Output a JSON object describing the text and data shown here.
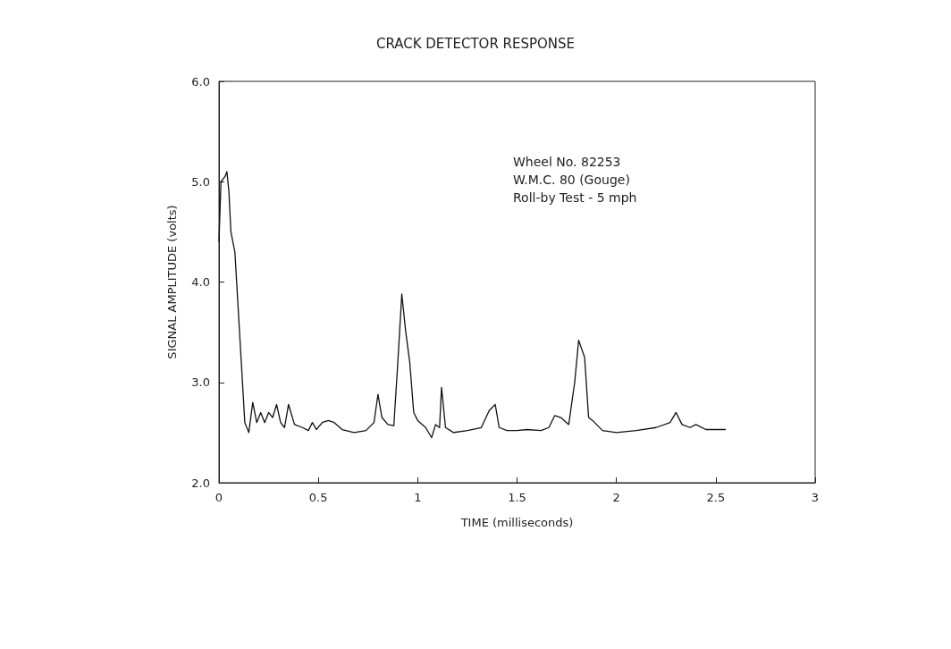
{
  "chart_data": {
    "type": "line",
    "title": "CRACK DETECTOR RESPONSE",
    "xlabel": "TIME (milliseconds)",
    "ylabel": "SIGNAL AMPLITUDE (volts)",
    "annotations": [
      "Wheel No. 82253",
      "W.M.C. 80 (Gouge)",
      "Roll-by Test - 5 mph"
    ],
    "x": [
      0,
      0.01,
      0.03,
      0.04,
      0.05,
      0.06,
      0.08,
      0.13,
      0.15,
      0.17,
      0.19,
      0.21,
      0.23,
      0.25,
      0.27,
      0.29,
      0.31,
      0.33,
      0.35,
      0.38,
      0.42,
      0.45,
      0.47,
      0.49,
      0.52,
      0.55,
      0.58,
      0.62,
      0.68,
      0.74,
      0.78,
      0.8,
      0.82,
      0.85,
      0.88,
      0.9,
      0.92,
      0.94,
      0.96,
      0.98,
      1.0,
      1.04,
      1.07,
      1.09,
      1.11,
      1.12,
      1.14,
      1.18,
      1.25,
      1.32,
      1.36,
      1.39,
      1.41,
      1.45,
      1.5,
      1.55,
      1.62,
      1.66,
      1.69,
      1.72,
      1.76,
      1.79,
      1.81,
      1.84,
      1.86,
      1.88,
      1.93,
      2.0,
      2.1,
      2.2,
      2.27,
      2.3,
      2.33,
      2.37,
      2.4,
      2.45,
      2.55
    ],
    "series": [
      {
        "color": "#111111",
        "values": [
          4.4,
          5.0,
          5.05,
          5.1,
          4.9,
          4.5,
          4.3,
          2.6,
          2.5,
          2.8,
          2.6,
          2.7,
          2.6,
          2.7,
          2.65,
          2.78,
          2.6,
          2.55,
          2.78,
          2.58,
          2.55,
          2.52,
          2.6,
          2.53,
          2.6,
          2.62,
          2.6,
          2.53,
          2.5,
          2.52,
          2.6,
          2.88,
          2.65,
          2.58,
          2.57,
          3.2,
          3.88,
          3.5,
          3.2,
          2.7,
          2.62,
          2.55,
          2.45,
          2.58,
          2.55,
          2.95,
          2.55,
          2.5,
          2.52,
          2.55,
          2.72,
          2.78,
          2.55,
          2.52,
          2.52,
          2.53,
          2.52,
          2.55,
          2.67,
          2.65,
          2.58,
          3.0,
          3.42,
          3.25,
          2.65,
          2.62,
          2.52,
          2.5,
          2.52,
          2.55,
          2.6,
          2.7,
          2.58,
          2.55,
          2.58,
          2.53,
          2.53
        ]
      }
    ],
    "xlim": [
      0,
      3
    ],
    "xticks": [
      0,
      0.5,
      1,
      1.5,
      2,
      2.5,
      3
    ],
    "ylim": [
      2,
      6
    ],
    "yticks": [
      {
        "value": 2,
        "label": "2.0"
      },
      {
        "value": 3,
        "label": "3.0"
      },
      {
        "value": 4,
        "label": "4.0"
      },
      {
        "value": 5,
        "label": "5.0"
      },
      {
        "value": 6,
        "label": "6.0"
      }
    ],
    "grid": false,
    "marker": "none",
    "line_style": "solid"
  }
}
